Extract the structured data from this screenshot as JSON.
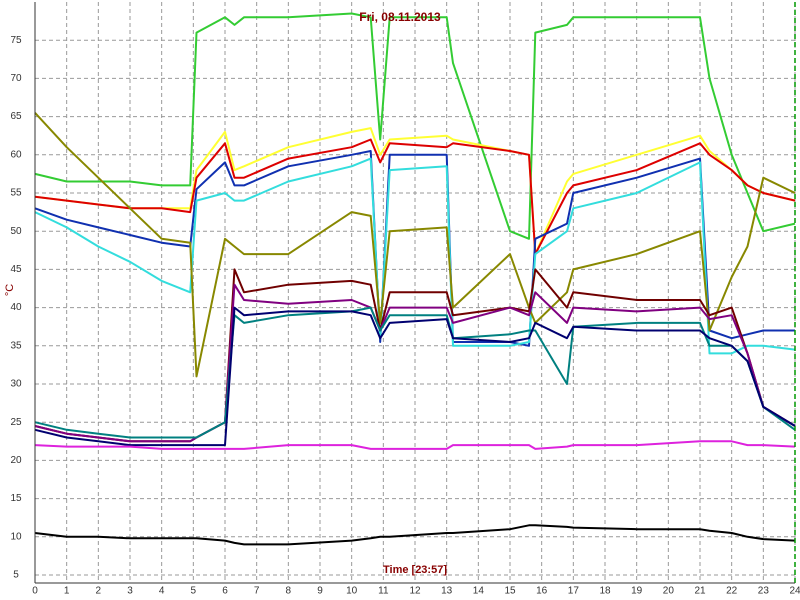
{
  "chart_data": {
    "type": "line",
    "title": "Fri, 08.11.2013",
    "x_label": "Time [23:57]",
    "y_label": "°C",
    "xlim": [
      0,
      24
    ],
    "xticks": [
      0,
      1,
      2,
      3,
      4,
      5,
      6,
      7,
      8,
      9,
      10,
      11,
      12,
      13,
      14,
      15,
      16,
      17,
      18,
      19,
      20,
      21,
      22,
      23,
      24
    ],
    "ylim": [
      5,
      80
    ],
    "yticks": [
      5,
      10,
      15,
      20,
      25,
      30,
      35,
      40,
      45,
      50,
      55,
      60,
      65,
      70,
      75
    ],
    "grid": true,
    "x": [
      0,
      1,
      2,
      3,
      4,
      4.9,
      5.1,
      6,
      6.3,
      6.6,
      8,
      10,
      10.6,
      10.9,
      11.2,
      13,
      13.2,
      15,
      15.6,
      15.8,
      16.8,
      17,
      19,
      21,
      21.3,
      22,
      22.5,
      23,
      24
    ],
    "series": [
      {
        "color": "#33cc33",
        "values": [
          57.5,
          56.5,
          56.5,
          56.5,
          56,
          56,
          76,
          78,
          77,
          78,
          78,
          78.5,
          78,
          62,
          78,
          78,
          72,
          50,
          49,
          76,
          77,
          78,
          78,
          78,
          70,
          60,
          55,
          50,
          51
        ]
      },
      {
        "color": "#ffff33",
        "values": [
          54.5,
          54,
          53.5,
          53,
          53,
          53,
          58,
          63,
          58,
          58.5,
          61,
          63,
          63.5,
          60,
          62,
          62.5,
          62,
          60.5,
          60,
          47,
          56.5,
          57.5,
          60,
          62.5,
          60.5,
          58,
          56,
          55,
          54
        ]
      },
      {
        "color": "#dd0000",
        "values": [
          54.5,
          54,
          53.5,
          53,
          53,
          52.5,
          57,
          61.5,
          57,
          57,
          59.5,
          61,
          62,
          59,
          61.5,
          61,
          61.5,
          60.5,
          60,
          47,
          55,
          56,
          58,
          61.5,
          60,
          58,
          56,
          55,
          54
        ]
      },
      {
        "color": "#1030b0",
        "values": [
          53,
          51.5,
          50.5,
          49.5,
          48.5,
          48,
          55.5,
          59,
          56,
          56,
          58.5,
          60,
          60.5,
          35.5,
          60,
          60,
          35.5,
          35.5,
          35,
          49,
          51,
          55,
          57,
          59.5,
          37,
          36,
          36.5,
          37,
          37
        ]
      },
      {
        "color": "#33dddd",
        "values": [
          52.5,
          50.5,
          48,
          46,
          43.5,
          42,
          54,
          55,
          54,
          54,
          56.5,
          58.5,
          59.5,
          36,
          58,
          58.5,
          35,
          35,
          35.5,
          47,
          50,
          53,
          55,
          59,
          34,
          34,
          35,
          35,
          34.5
        ]
      },
      {
        "color": "#888800",
        "values": [
          65.5,
          61,
          57,
          53,
          49,
          48.5,
          31,
          49,
          48,
          47,
          47,
          52.5,
          52,
          38,
          50,
          50.5,
          40,
          47,
          40,
          38,
          42,
          45,
          47,
          50,
          37,
          44,
          48,
          57,
          55
        ]
      },
      {
        "color": "#700000",
        "values": [
          24.5,
          23.5,
          23,
          22.5,
          22.5,
          22.5,
          23,
          25,
          45,
          42,
          43,
          43.5,
          43,
          37,
          42,
          42,
          39,
          40,
          39.5,
          45,
          40,
          42,
          41,
          41,
          39,
          40,
          34,
          27,
          24.5
        ]
      },
      {
        "color": "#800080",
        "values": [
          24.5,
          23.5,
          23,
          22.5,
          22.5,
          22.5,
          23,
          25,
          43,
          41,
          40.5,
          41,
          40,
          37,
          40,
          40,
          38,
          40,
          39,
          42,
          38,
          40,
          39.5,
          40,
          38.5,
          39,
          34,
          27,
          24.5
        ]
      },
      {
        "color": "#008080",
        "values": [
          25,
          24,
          23.5,
          23,
          23,
          23,
          23,
          25,
          39,
          38,
          39,
          39.5,
          40,
          37,
          39,
          39,
          36,
          36.5,
          37,
          37,
          30,
          37.5,
          38,
          38,
          35,
          35,
          33,
          27,
          24
        ]
      },
      {
        "color": "#000070",
        "values": [
          24,
          23,
          22.5,
          22,
          22,
          22,
          22,
          22,
          40,
          39,
          39.5,
          39.5,
          39,
          36,
          38,
          38.5,
          36,
          35.5,
          36,
          38,
          36,
          37.5,
          37,
          37,
          36,
          35,
          33,
          27,
          24.5
        ]
      },
      {
        "color": "#dd22dd",
        "values": [
          22,
          21.8,
          21.8,
          21.8,
          21.5,
          21.5,
          21.5,
          21.5,
          21.5,
          21.5,
          22,
          22,
          21.5,
          21.5,
          21.5,
          21.5,
          22,
          22,
          22,
          21.5,
          21.8,
          22,
          22,
          22.5,
          22.5,
          22.5,
          22,
          22,
          21.8
        ]
      },
      {
        "color": "#000000",
        "values": [
          10.5,
          10,
          10,
          9.8,
          9.8,
          9.8,
          9.8,
          9.5,
          9.2,
          9,
          9,
          9.5,
          9.8,
          10,
          10,
          10.5,
          10.5,
          11,
          11.5,
          11.5,
          11.3,
          11.2,
          11,
          11,
          10.8,
          10.5,
          10,
          9.7,
          9.5
        ]
      }
    ]
  }
}
